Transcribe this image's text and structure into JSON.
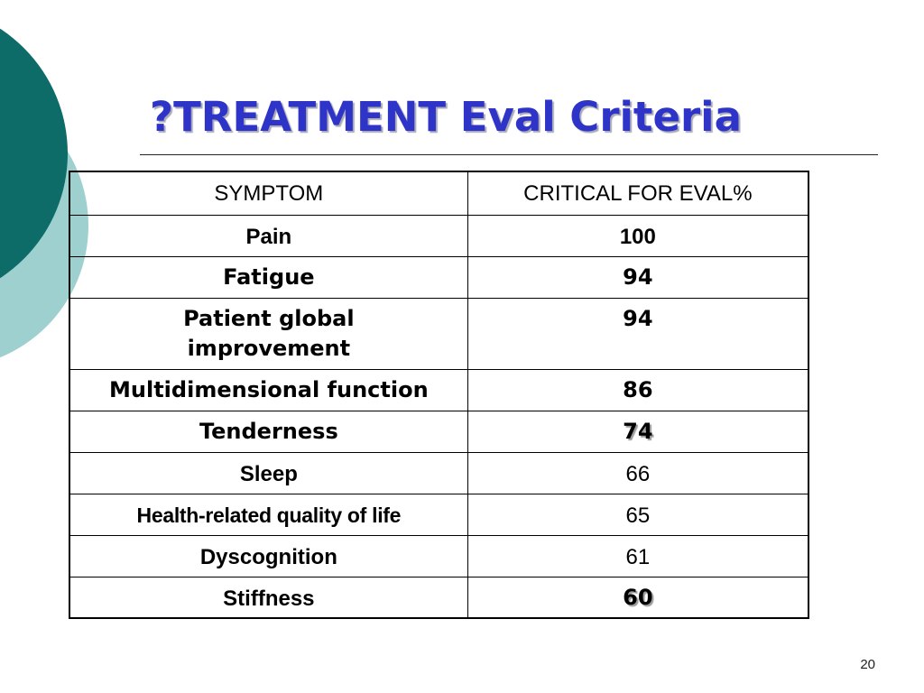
{
  "slide": {
    "title": "?TREATMENT Eval Criteria",
    "page_number": "20"
  },
  "colors": {
    "title": "#2f34c8",
    "circle_dark": "#0d6b68",
    "circle_light": "#9fd0d0"
  },
  "table": {
    "headers": [
      "SYMPTOM",
      "CRITICAL FOR EVAL%"
    ],
    "rows": [
      {
        "symptom": "Pain",
        "value": "100"
      },
      {
        "symptom": "Fatigue",
        "value": "94"
      },
      {
        "symptom": "Patient global improvement",
        "value": "94"
      },
      {
        "symptom": "Multidimensional function",
        "value": "86"
      },
      {
        "symptom": "Tenderness",
        "value": "74"
      },
      {
        "symptom": "Sleep",
        "value": "66"
      },
      {
        "symptom": "Health-related quality of life",
        "value": "65"
      },
      {
        "symptom": "Dyscognition",
        "value": "61"
      },
      {
        "symptom": "Stiffness",
        "value": "60"
      }
    ]
  }
}
